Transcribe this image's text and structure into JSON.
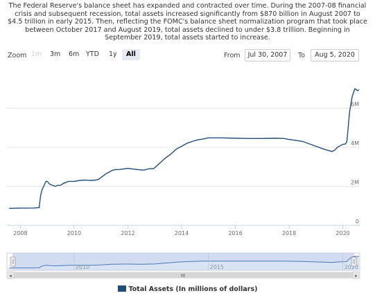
{
  "description": [
    "The Federal Reserve's balance sheet has expanded and contracted over time. During the 2007-08 financial",
    "crisis and subsequent recession, total assets increased significantly from $870 billion in August 2007 to",
    "$4.5 trillion in early 2015. Then, reflecting the FOMC's balance sheet normalization program that took place",
    "between October 2017 and August 2019, total assets declined to under $3.8 trillion. Beginning in",
    "September 2019, total assets started to increase."
  ],
  "toolbar": {
    "zoom_label": "Zoom",
    "buttons": [
      "1m",
      "3m",
      "6m",
      "YTD",
      "1y",
      "All"
    ],
    "active": "All",
    "disabled": "1m",
    "from_label": "From",
    "from_value": "Jul 30, 2007",
    "to_label": "To",
    "to_value": "Aug 5, 2020"
  },
  "chart_data": {
    "type": "line",
    "title": "",
    "xlabel": "",
    "ylabel": "",
    "xlim": [
      2007.5,
      2020.63
    ],
    "ylim": [
      0,
      8000000
    ],
    "x_ticks": [
      "2008",
      "2010",
      "2012",
      "2014",
      "2016",
      "2018",
      "2020"
    ],
    "y_ticks": [
      "0",
      "2M",
      "4M",
      "6M"
    ],
    "grid": "horizontal",
    "color": "#1f4e79",
    "series": [
      {
        "name": "Total Assets (In millions of dollars)",
        "x": [
          2007.58,
          2008.0,
          2008.5,
          2008.7,
          2008.75,
          2008.8,
          2008.9,
          2008.95,
          2009.0,
          2009.1,
          2009.2,
          2009.3,
          2009.4,
          2009.5,
          2009.6,
          2009.7,
          2009.8,
          2009.9,
          2010.0,
          2010.2,
          2010.4,
          2010.6,
          2010.8,
          2010.9,
          2011.0,
          2011.2,
          2011.4,
          2011.5,
          2011.7,
          2011.9,
          2012.0,
          2012.2,
          2012.4,
          2012.6,
          2012.8,
          2012.95,
          2013.0,
          2013.2,
          2013.4,
          2013.6,
          2013.8,
          2014.0,
          2014.2,
          2014.4,
          2014.6,
          2014.8,
          2015.0,
          2015.5,
          2016.0,
          2016.5,
          2017.0,
          2017.5,
          2017.8,
          2018.0,
          2018.5,
          2019.0,
          2019.3,
          2019.6,
          2019.7,
          2019.8,
          2020.0,
          2020.1,
          2020.15,
          2020.2,
          2020.25,
          2020.35,
          2020.45,
          2020.55,
          2020.6
        ],
        "values": [
          870000,
          880000,
          890000,
          910000,
          1500000,
          1800000,
          2100000,
          2250000,
          2250000,
          2100000,
          2050000,
          2000000,
          2050000,
          2050000,
          2150000,
          2200000,
          2250000,
          2250000,
          2250000,
          2300000,
          2320000,
          2300000,
          2320000,
          2350000,
          2450000,
          2650000,
          2800000,
          2850000,
          2860000,
          2900000,
          2920000,
          2880000,
          2850000,
          2830000,
          2900000,
          2900000,
          2950000,
          3200000,
          3450000,
          3650000,
          3900000,
          4050000,
          4200000,
          4300000,
          4380000,
          4420000,
          4480000,
          4480000,
          4460000,
          4450000,
          4450000,
          4460000,
          4450000,
          4400000,
          4300000,
          4050000,
          3900000,
          3780000,
          3850000,
          4000000,
          4150000,
          4170000,
          4300000,
          5000000,
          5800000,
          6600000,
          7000000,
          6900000,
          6950000
        ]
      }
    ]
  },
  "navigator": {
    "labels": [
      "2010",
      "2015",
      "2020"
    ],
    "scroll_center": "III",
    "left_arrow": "◂",
    "right_arrow": "▸"
  },
  "legend": {
    "label": "Total Assets (In millions of dollars)"
  }
}
